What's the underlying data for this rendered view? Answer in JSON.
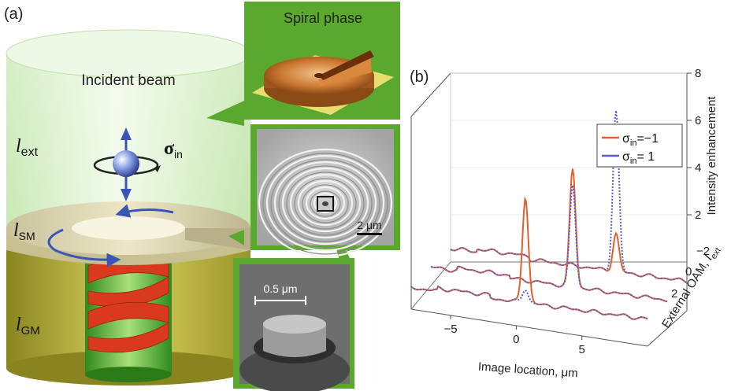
{
  "panel_a": {
    "label": "(a)",
    "incident_beam": "Incident beam",
    "l_ext": {
      "symbol": "l",
      "sub": "ext"
    },
    "sigma_in": {
      "symbol": "σ",
      "sub": "in"
    },
    "l_sm": {
      "symbol": "l",
      "sub": "SM"
    },
    "l_gm": {
      "symbol": "l",
      "sub": "GM"
    },
    "inset_spiral_title": "Spiral phase",
    "scale_bar_rings": "2 μm",
    "scale_bar_pillar": "0.5 μm",
    "colors": {
      "inset_green": "#5aa82e",
      "beam_green": "#d6f0c6",
      "gold": "#b8b23a",
      "spiral_red": "#d93a1e",
      "arrow_blue": "#3a55b8"
    }
  },
  "panel_b": {
    "label": "(b)",
    "chart_data": {
      "type": "line",
      "xlabel": "Image location, μm",
      "ylabel": "Intensity enhancement",
      "zlabel": {
        "text": "External OAM, ",
        "symbol": "l",
        "sub": "ext"
      },
      "x_ticks": [
        "−5",
        "0",
        "5"
      ],
      "y_ticks": [
        "2",
        "4",
        "6",
        "8"
      ],
      "z_ticks": [
        "−2",
        "0",
        "2"
      ],
      "xlim": [
        -8,
        10
      ],
      "ylim": [
        0,
        8
      ],
      "legend": {
        "position": "top-right",
        "items": [
          {
            "label_main": "σ",
            "label_sub": "in",
            "label_rest": "=−1",
            "color": "#e0602e",
            "style": "solid"
          },
          {
            "label_main": "σ",
            "label_sub": "in",
            "label_rest": "=  1",
            "color": "#5a5ad0",
            "style": "dotted"
          }
        ]
      },
      "series": [
        {
          "l_ext": 2,
          "sigma": -1,
          "peak_x": 0.7,
          "peak_y": 4.5
        },
        {
          "l_ext": 2,
          "sigma": 1,
          "peak_x": 0.7,
          "peak_y": 0.6
        },
        {
          "l_ext": 0,
          "sigma": -1,
          "peak_x": 2.8,
          "peak_y": 5.0
        },
        {
          "l_ext": 0,
          "sigma": 1,
          "peak_x": 2.8,
          "peak_y": 4.3
        },
        {
          "l_ext": -2,
          "sigma": -1,
          "peak_x": 4.6,
          "peak_y": 1.6
        },
        {
          "l_ext": -2,
          "sigma": 1,
          "peak_x": 4.6,
          "peak_y": 6.8
        }
      ]
    }
  }
}
